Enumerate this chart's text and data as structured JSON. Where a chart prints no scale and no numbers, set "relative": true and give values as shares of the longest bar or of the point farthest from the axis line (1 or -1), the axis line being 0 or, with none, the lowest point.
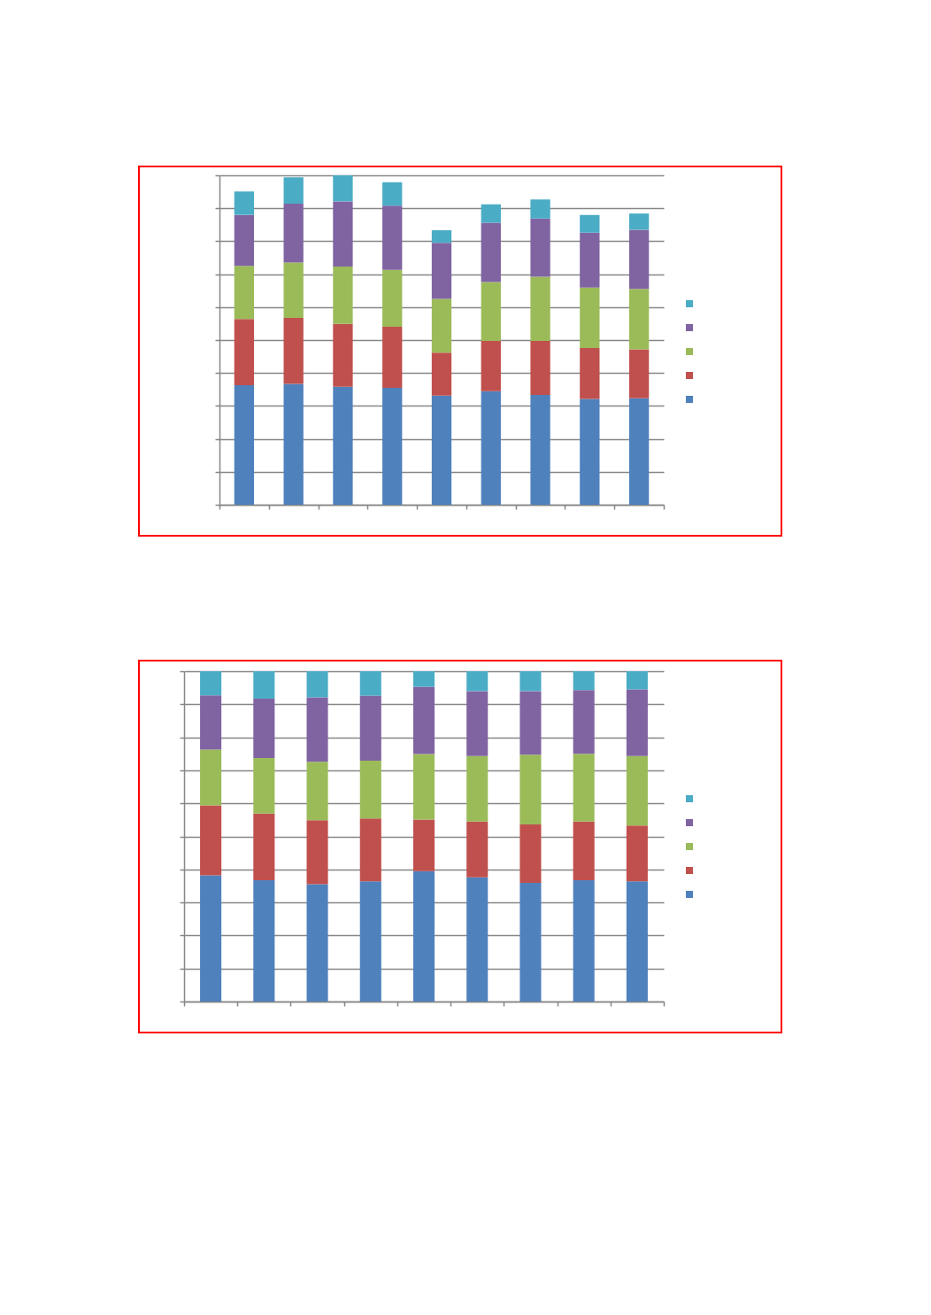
{
  "chart_data": [
    {
      "type": "bar",
      "stacked": true,
      "relative": true,
      "categories": [
        null,
        null,
        null,
        null,
        null,
        null,
        null,
        null,
        null
      ],
      "series": [
        {
          "color": "#4f81bd",
          "values": [
            0.363,
            0.367,
            0.358,
            0.355,
            0.331,
            0.345,
            0.333,
            0.321,
            0.323
          ]
        },
        {
          "color": "#c0504d",
          "values": [
            0.201,
            0.2,
            0.191,
            0.185,
            0.131,
            0.152,
            0.164,
            0.155,
            0.149
          ]
        },
        {
          "color": "#9bbb59",
          "values": [
            0.161,
            0.168,
            0.174,
            0.173,
            0.163,
            0.179,
            0.195,
            0.183,
            0.183
          ]
        },
        {
          "color": "#8064a2",
          "values": [
            0.155,
            0.179,
            0.198,
            0.195,
            0.17,
            0.18,
            0.177,
            0.167,
            0.18
          ]
        },
        {
          "color": "#4bacc6",
          "values": [
            0.071,
            0.08,
            0.079,
            0.071,
            0.038,
            0.056,
            0.058,
            0.054,
            0.049
          ]
        }
      ],
      "grid": "y"
    },
    {
      "type": "bar",
      "stacked": true,
      "relative": true,
      "categories": [
        null,
        null,
        null,
        null,
        null,
        null,
        null,
        null,
        null
      ],
      "series": [
        {
          "color": "#4f81bd",
          "values": [
            0.382,
            0.367,
            0.355,
            0.364,
            0.395,
            0.376,
            0.359,
            0.367,
            0.364
          ]
        },
        {
          "color": "#c0504d",
          "values": [
            0.212,
            0.202,
            0.194,
            0.19,
            0.156,
            0.169,
            0.177,
            0.178,
            0.169
          ]
        },
        {
          "color": "#9bbb59",
          "values": [
            0.169,
            0.168,
            0.177,
            0.175,
            0.198,
            0.198,
            0.211,
            0.205,
            0.21
          ]
        },
        {
          "color": "#8064a2",
          "values": [
            0.164,
            0.18,
            0.195,
            0.197,
            0.204,
            0.197,
            0.193,
            0.193,
            0.202
          ]
        },
        {
          "color": "#4bacc6",
          "values": [
            0.073,
            0.083,
            0.079,
            0.074,
            0.047,
            0.06,
            0.06,
            0.057,
            0.055
          ]
        }
      ],
      "grid": "y"
    }
  ]
}
